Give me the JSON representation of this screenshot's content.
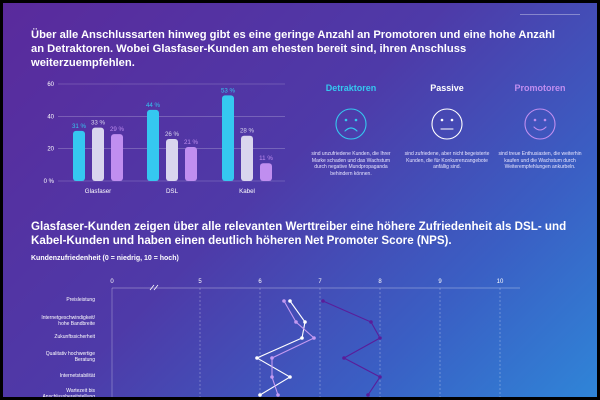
{
  "headings": {
    "top": "Über alle Anschlussarten hinweg gibt es eine geringe Anzahl an Promotoren und eine hohe Anzahl an Detraktoren. Wobei Glasfaser-Kunden am ehesten bereit sind, ihren Anschluss weiterzuempfehlen.",
    "bottom": "Glasfaser-Kunden zeigen über alle relevanten Werttreiber eine höhere Zufriedenheit als DSL- und Kabel-Kunden und haben einen deutlich höheren Net Promoter Score (NPS)."
  },
  "colors": {
    "detraktoren": "#35c8f0",
    "passive": "#d9d6ee",
    "promotoren": "#c08ef0",
    "glasfaser_line": "#5a1d9a",
    "dsl_line": "#ffffff",
    "kabel_line": "#c49af2"
  },
  "categories": [
    {
      "title": "Detraktoren",
      "text": "sind unzufriedene Kunden, die Ihrer Marke schaden und das Wachstum durch negative Mundpropaganda behindern können.",
      "icon": "sad-face-icon"
    },
    {
      "title": "Passive",
      "text": "sind zufriedene, aber nicht begeisterte Kunden, die für Konkurrenzangebote anfällig sind.",
      "icon": "neutral-face-icon"
    },
    {
      "title": "Promotoren",
      "text": "sind treue Enthusiasten, die weiterhin kaufen und die Wachstum durch Weiterempfehlungen ankurbeln.",
      "icon": "happy-face-icon"
    }
  ],
  "chart_data": [
    {
      "type": "bar",
      "categories": [
        "Glasfaser",
        "DSL",
        "Kabel"
      ],
      "series": [
        {
          "name": "Detraktoren",
          "values": [
            31,
            44,
            53
          ]
        },
        {
          "name": "Passive",
          "values": [
            33,
            26,
            28
          ]
        },
        {
          "name": "Promotoren",
          "values": [
            29,
            21,
            11
          ]
        }
      ],
      "value_labels": [
        [
          "31 %",
          "33 %",
          "29 %"
        ],
        [
          "44 %",
          "26 %",
          "21 %"
        ],
        [
          "53 %",
          "28 %",
          "11 %"
        ]
      ],
      "yticks": [
        "0  %",
        "20",
        "40",
        "60"
      ],
      "ylim": [
        0,
        60
      ]
    },
    {
      "type": "line",
      "title": "Kundenzufriedenheit (0 = niedrig, 10 = hoch)",
      "xticks": [
        "0",
        "5",
        "6",
        "7",
        "8",
        "9",
        "10"
      ],
      "categories": [
        "Preisleistung",
        "Internetgeschwindigkeit/\nhohe Bandbreite",
        "Zukunftssicherheit",
        "Qualitativ hochwertige\nBeratung",
        "Internetstabilität",
        "Wartezeit bis\nAnschlussbereitstellung"
      ],
      "series": [
        {
          "values": [
            7.05,
            7.85,
            8.0,
            7.4,
            8.0,
            7.8
          ]
        },
        {
          "values": [
            6.5,
            6.75,
            6.7,
            5.95,
            6.5,
            6.0
          ]
        },
        {
          "values": [
            6.4,
            6.6,
            6.9,
            6.2,
            6.2,
            6.3
          ]
        }
      ]
    }
  ]
}
